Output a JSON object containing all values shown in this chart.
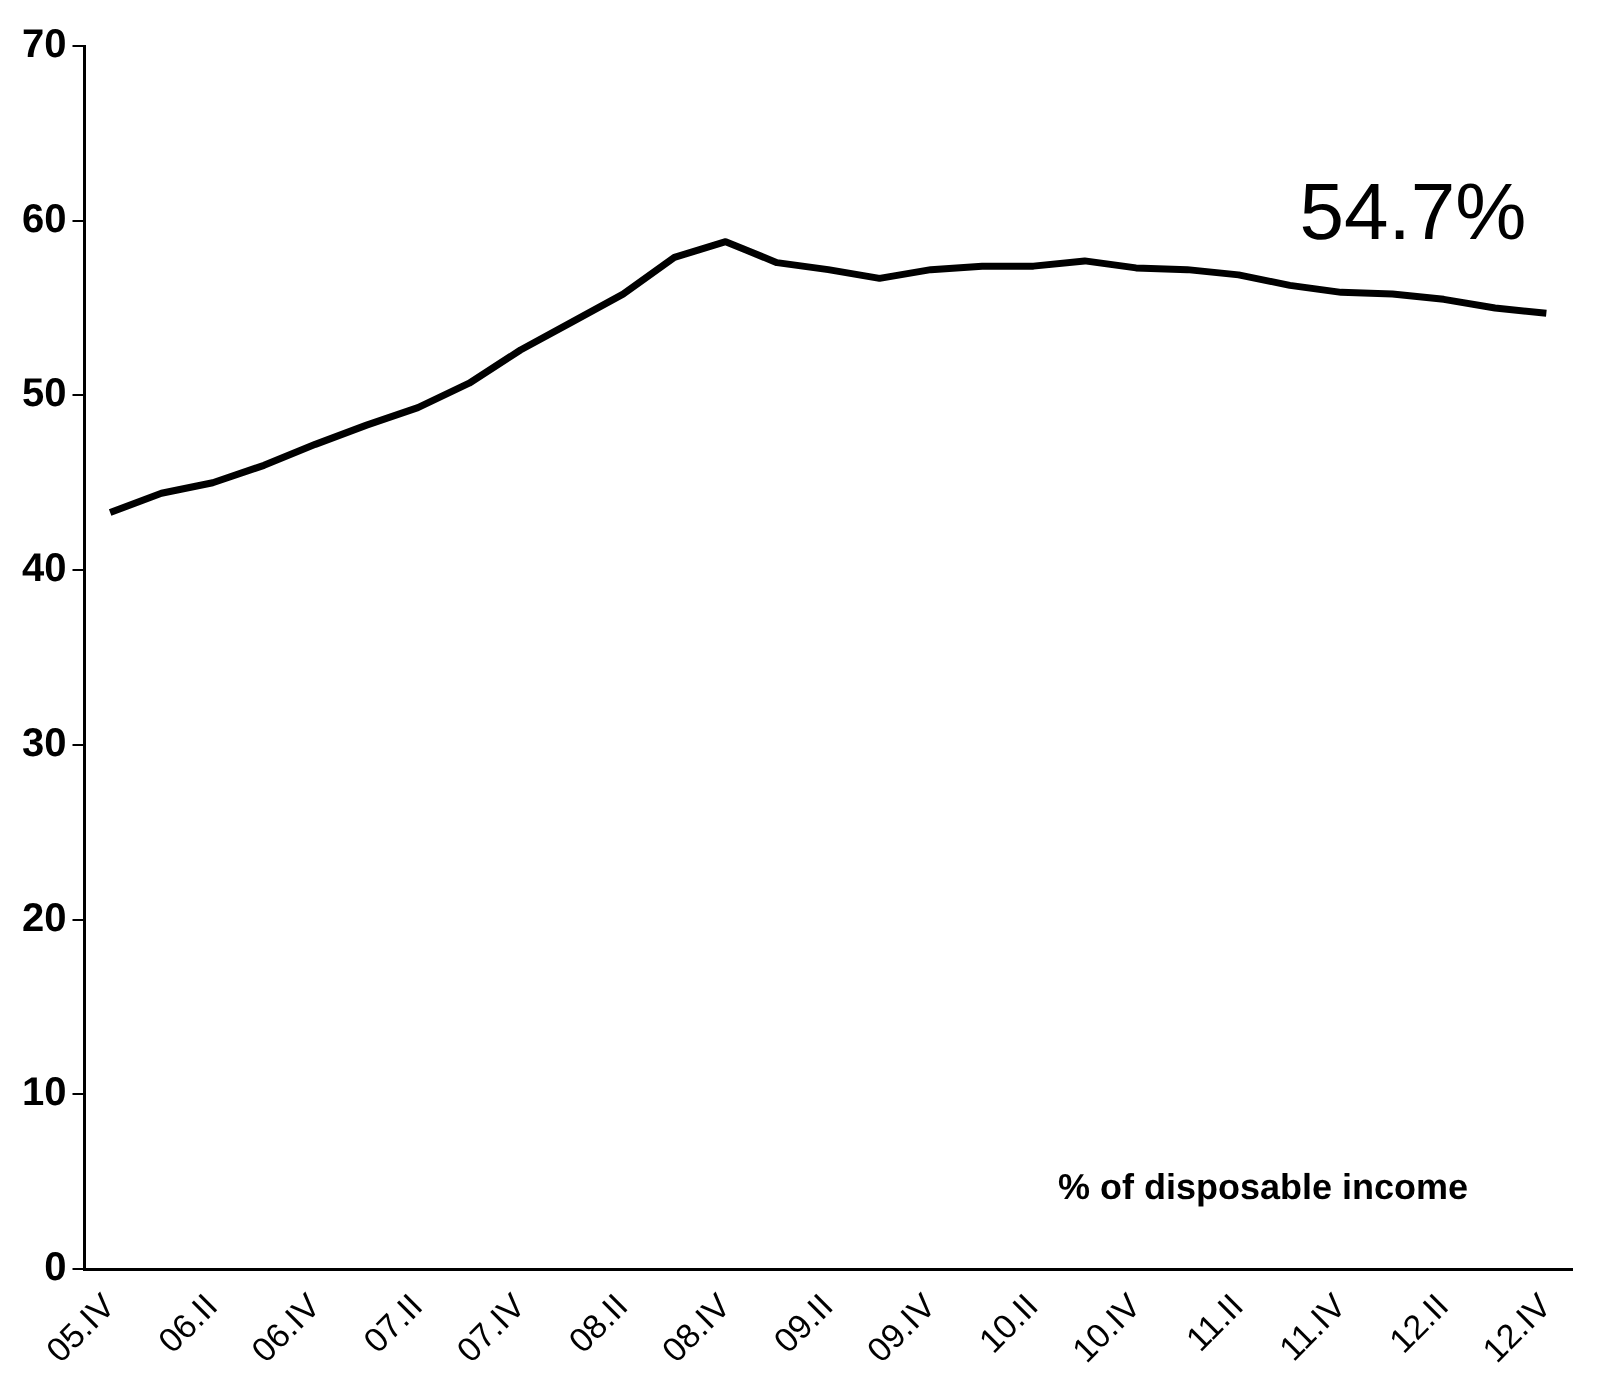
{
  "chart_data": {
    "type": "line",
    "categories": [
      "05.IV",
      null,
      "06.II",
      null,
      "06.IV",
      null,
      "07.II",
      null,
      "07.IV",
      null,
      "08.II",
      null,
      "08.IV",
      null,
      "09.II",
      null,
      "09.IV",
      null,
      "10.II",
      null,
      "10.IV",
      null,
      "11.II",
      null,
      "11.IV",
      null,
      "12.II",
      null,
      "12.IV"
    ],
    "series": [
      {
        "color": "#000000",
        "values": [
          43.3,
          44.4,
          45.0,
          46.0,
          47.2,
          48.3,
          49.3,
          50.7,
          52.6,
          54.2,
          55.8,
          57.9,
          58.8,
          57.6,
          57.2,
          56.7,
          57.2,
          57.4,
          57.4,
          57.7,
          57.3,
          57.2,
          56.9,
          56.3,
          55.9,
          55.8,
          55.5,
          55.0,
          54.7
        ]
      }
    ],
    "ylim": [
      0,
      70
    ],
    "yticks": [
      0,
      10,
      20,
      30,
      40,
      50,
      60,
      70
    ],
    "grid": false,
    "legend": false,
    "marker": "none",
    "line_style": "solid",
    "annotations": [
      {
        "text": "54.7%",
        "x": "12.IV",
        "y": 54.7
      },
      "% of disposable income"
    ]
  }
}
